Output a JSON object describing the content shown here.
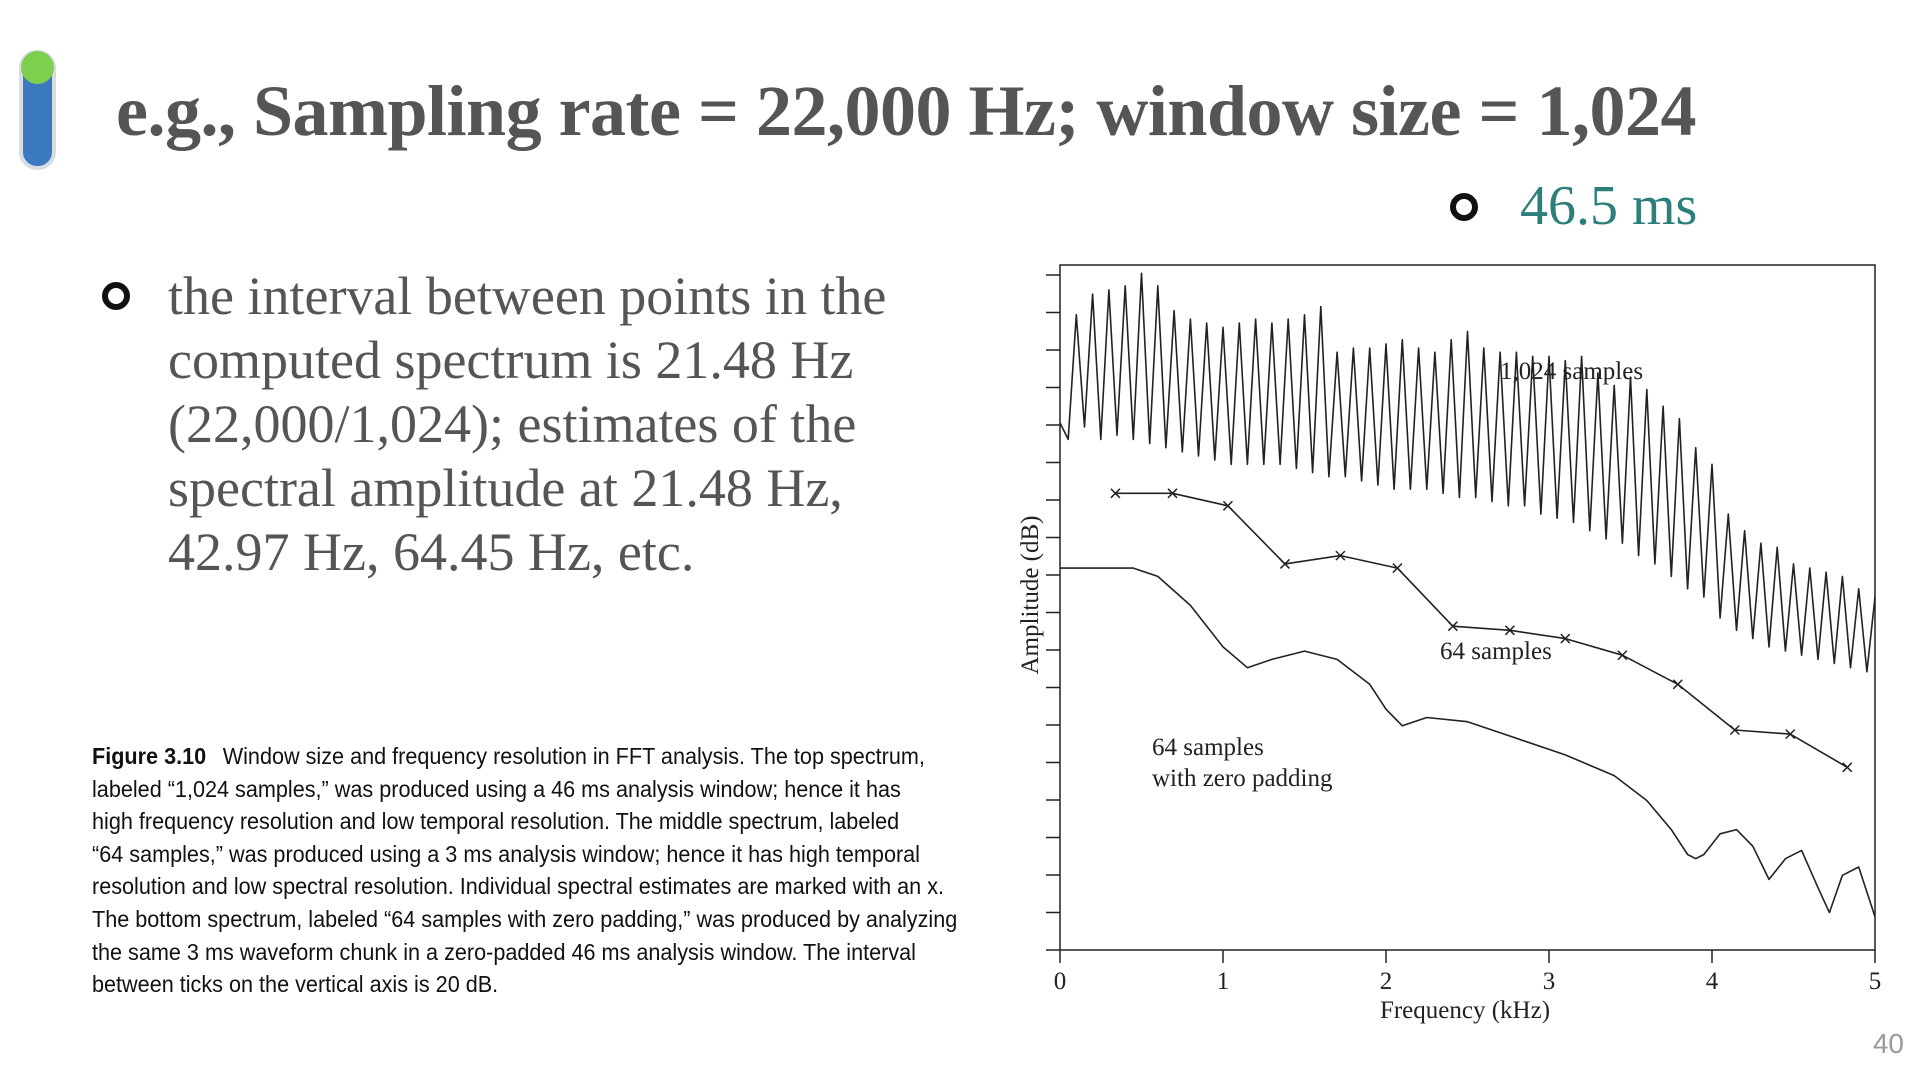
{
  "slide": {
    "title": "e.g., Sampling rate = 22,000 Hz; window size = 1,024",
    "sub_bullet": "46.5 ms",
    "main_bullet_lines": [
      "the interval between points in the",
      "computed spectrum is 21.48 Hz",
      "(22,000/1,024); estimates of the",
      "spectral amplitude at 21.48 Hz,",
      "42.97 Hz, 64.45 Hz, etc."
    ],
    "page_number": "40",
    "accent_colors": {
      "bar": "#3a78bf",
      "dot": "#7fcf4f",
      "sub_bullet_text": "#2d7f7b"
    }
  },
  "caption": {
    "figure_label": "Figure 3.10",
    "lines": [
      "Window size and frequency resolution in FFT analysis. The top spectrum,",
      "labeled “1,024 samples,” was produced using a 46 ms analysis window; hence it has",
      "high frequency resolution and low temporal resolution. The middle spectrum, labeled",
      "“64 samples,” was produced using a 3 ms analysis window; hence it has high temporal",
      "resolution and low spectral resolution. Individual spectral estimates are marked with an x.",
      "The bottom spectrum, labeled “64 samples with zero padding,” was produced by analyzing",
      "the same 3 ms waveform chunk in a zero-padded 46 ms analysis window. The interval",
      "between ticks on the vertical axis is 20 dB."
    ]
  },
  "chart_data": {
    "type": "line",
    "xlabel": "Frequency (kHz)",
    "ylabel": "Amplitude (dB)",
    "xlim": [
      0,
      5
    ],
    "x_ticks": [
      "0",
      "1",
      "2",
      "3",
      "4",
      "5"
    ],
    "y_tick_count": 19,
    "grid": false,
    "series": [
      {
        "name": "1,024 samples",
        "x": [
          0.0,
          0.05,
          0.1,
          0.15,
          0.2,
          0.25,
          0.3,
          0.35,
          0.4,
          0.45,
          0.5,
          0.55,
          0.6,
          0.65,
          0.7,
          0.75,
          0.8,
          0.85,
          0.9,
          0.95,
          1.0,
          1.05,
          1.1,
          1.15,
          1.2,
          1.25,
          1.3,
          1.35,
          1.4,
          1.45,
          1.5,
          1.55,
          1.6,
          1.65,
          1.7,
          1.75,
          1.8,
          1.85,
          1.9,
          1.95,
          2.0,
          2.05,
          2.1,
          2.15,
          2.2,
          2.25,
          2.3,
          2.35,
          2.4,
          2.45,
          2.5,
          2.55,
          2.6,
          2.65,
          2.7,
          2.75,
          2.8,
          2.85,
          2.9,
          2.95,
          3.0,
          3.05,
          3.1,
          3.15,
          3.2,
          3.25,
          3.3,
          3.35,
          3.4,
          3.45,
          3.5,
          3.55,
          3.6,
          3.65,
          3.7,
          3.75,
          3.8,
          3.85,
          3.9,
          3.95,
          4.0,
          4.05,
          4.1,
          4.15,
          4.2,
          4.25,
          4.3,
          4.35,
          4.4,
          4.45,
          4.5,
          4.55,
          4.6,
          4.65,
          4.7,
          4.75,
          4.8,
          4.85,
          4.9,
          4.95,
          5.0
        ],
        "y": [
          -28,
          -32,
          -2,
          -29,
          3,
          -32,
          4,
          -31,
          5,
          -32,
          8,
          -33,
          5,
          -34,
          -1,
          -35,
          -3,
          -36,
          -4,
          -37,
          -5,
          -38,
          -4,
          -38,
          -3,
          -38,
          -4,
          -38,
          -3,
          -39,
          -2,
          -40,
          0,
          -41,
          -11,
          -41,
          -10,
          -42,
          -10,
          -43,
          -9,
          -44,
          -8,
          -44,
          -10,
          -44,
          -11,
          -45,
          -8,
          -46,
          -6,
          -46,
          -10,
          -47,
          -11,
          -48,
          -11,
          -48,
          -12,
          -50,
          -12,
          -51,
          -13,
          -52,
          -12,
          -54,
          -16,
          -56,
          -19,
          -57,
          -17,
          -60,
          -20,
          -62,
          -24,
          -65,
          -27,
          -68,
          -34,
          -70,
          -38,
          -75,
          -50,
          -78,
          -54,
          -80,
          -57,
          -82,
          -58,
          -83,
          -62,
          -84,
          -63,
          -85,
          -64,
          -86,
          -65,
          -87,
          -68,
          -88,
          -70
        ]
      },
      {
        "name": "64 samples",
        "x": [
          0.34,
          0.69,
          1.03,
          1.38,
          1.72,
          2.07,
          2.41,
          2.76,
          3.1,
          3.45,
          3.79,
          4.14,
          4.48,
          4.83
        ],
        "y": [
          -45,
          -45,
          -48,
          -62,
          -60,
          -63,
          -77,
          -78,
          -80,
          -84,
          -91,
          -102,
          -103,
          -111
        ]
      },
      {
        "name": "64 samples with zero padding",
        "x": [
          0,
          0.25,
          0.45,
          0.6,
          0.8,
          1.0,
          1.15,
          1.3,
          1.5,
          1.7,
          1.9,
          2.0,
          2.1,
          2.25,
          2.5,
          2.8,
          3.1,
          3.4,
          3.6,
          3.75,
          3.85,
          3.9,
          3.95,
          4.05,
          4.15,
          4.25,
          4.35,
          4.45,
          4.55,
          4.65,
          4.72,
          4.8,
          4.9,
          5.0
        ],
        "y": [
          -63,
          -63,
          -63,
          -65,
          -72,
          -82,
          -87,
          -85,
          -83,
          -85,
          -91,
          -97,
          -101,
          -99,
          -100,
          -104,
          -108,
          -113,
          -119,
          -126,
          -132,
          -133,
          -132,
          -127,
          -126,
          -130,
          -138,
          -133,
          -131,
          -140,
          -146,
          -137,
          -135,
          -147
        ]
      }
    ],
    "annotations": [
      "1,024 samples",
      "64 samples",
      "64 samples",
      "with zero padding"
    ]
  }
}
